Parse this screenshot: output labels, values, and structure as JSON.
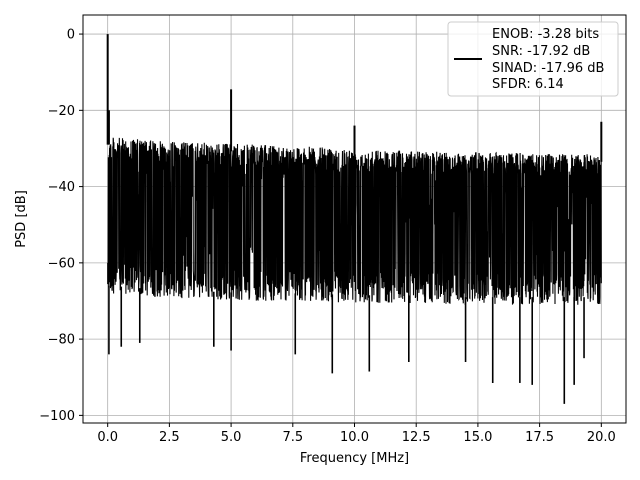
{
  "chart_data": {
    "type": "line",
    "title": "",
    "xlabel": "Frequency [MHz]",
    "ylabel": "PSD [dB]",
    "xlim": [
      -1.0,
      21.0
    ],
    "ylim": [
      -102,
      5
    ],
    "xticks": [
      0.0,
      2.5,
      5.0,
      7.5,
      10.0,
      12.5,
      15.0,
      17.5,
      20.0
    ],
    "xtick_labels": [
      "0.0",
      "2.5",
      "5.0",
      "7.5",
      "10.0",
      "12.5",
      "15.0",
      "17.5",
      "20.0"
    ],
    "yticks": [
      0,
      -20,
      -40,
      -60,
      -80,
      -100
    ],
    "ytick_labels": [
      "0",
      "−20",
      "−40",
      "−60",
      "−80",
      "−100"
    ],
    "grid": true,
    "legend_position": "top-right",
    "line_color": "#000000",
    "series": [
      {
        "legend_lines": [
          "ENOB: -3.28 bits",
          "SNR: -17.92 dB",
          "SINAD: -17.96 dB",
          "SFDR: 6.14"
        ],
        "noise_envelope": {
          "x": [
            0.1,
            2.0,
            4.0,
            6.0,
            8.0,
            10.0,
            12.0,
            14.0,
            16.0,
            18.0,
            20.0
          ],
          "upper": [
            -27,
            -28,
            -28.5,
            -29,
            -29.5,
            -30,
            -30.5,
            -31,
            -31,
            -31.5,
            -31.5
          ],
          "lower": [
            -68,
            -69,
            -69.5,
            -70,
            -70,
            -70.5,
            -70.5,
            -71,
            -71,
            -71,
            -71
          ]
        },
        "peaks": [
          {
            "x": 0.0,
            "y": 0
          },
          {
            "x": 0.05,
            "y": -20
          },
          {
            "x": 5.0,
            "y": -14.5
          },
          {
            "x": 10.0,
            "y": -24
          },
          {
            "x": 20.0,
            "y": -23
          }
        ],
        "dips": [
          {
            "x": 0.05,
            "y": -84
          },
          {
            "x": 0.55,
            "y": -82
          },
          {
            "x": 1.3,
            "y": -81
          },
          {
            "x": 4.3,
            "y": -82
          },
          {
            "x": 5.0,
            "y": -83
          },
          {
            "x": 7.6,
            "y": -84
          },
          {
            "x": 9.1,
            "y": -89
          },
          {
            "x": 10.6,
            "y": -88.5
          },
          {
            "x": 12.2,
            "y": -86
          },
          {
            "x": 14.5,
            "y": -86
          },
          {
            "x": 15.6,
            "y": -91.5
          },
          {
            "x": 16.7,
            "y": -91.5
          },
          {
            "x": 17.2,
            "y": -92
          },
          {
            "x": 18.5,
            "y": -97
          },
          {
            "x": 18.9,
            "y": -92
          },
          {
            "x": 19.3,
            "y": -85
          }
        ]
      }
    ]
  }
}
